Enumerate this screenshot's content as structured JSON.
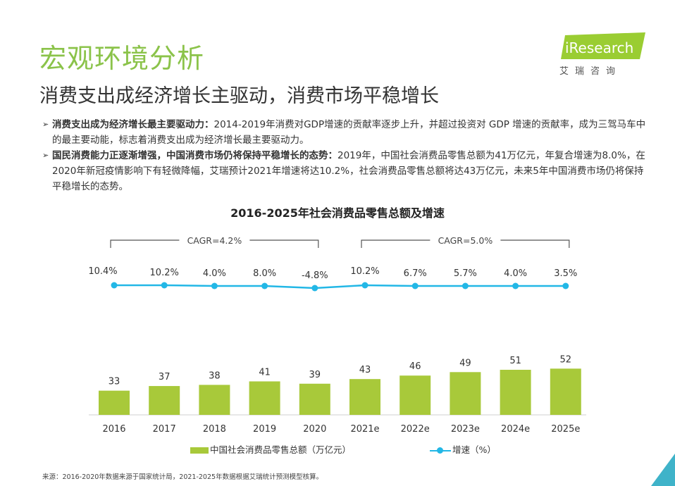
{
  "header": {
    "title": "宏观环境分析",
    "subtitle": "消费支出成经济增长主驱动，消费市场平稳增长"
  },
  "logo": {
    "text": "iResearch",
    "sub": "艾瑞咨询"
  },
  "bullets": [
    {
      "bold": "消费支出成为经济增长最主要驱动力：",
      "text": "2014-2019年消费对GDP增速的贡献率逐步上升，并超过投资对 GDP 增速的贡献率，成为三驾马车中的最主要动能，标志着消费支出成为经济增长最主要驱动力。"
    },
    {
      "bold": "国民消费能力正逐渐增强，中国消费市场仍将保持平稳增长的态势：",
      "text": "2019年，中国社会消费品零售总额为41万亿元，年复合增速为8.0%，在2020年新冠疫情影响下有轻微降幅，艾瑞预计2021年增速将达10.2%，社会消费品零售总额将达43万亿元，未来5年中国消费市场仍将保持平稳增长的态势。"
    }
  ],
  "chart_data": {
    "type": "bar",
    "title": "2016-2025年社会消费品零售总额及增速",
    "categories": [
      "2016",
      "2017",
      "2018",
      "2019",
      "2020",
      "2021e",
      "2022e",
      "2023e",
      "2024e",
      "2025e"
    ],
    "series": [
      {
        "name": "中国社会消费品零售总额（万亿元）",
        "type": "bar",
        "values": [
          33,
          37,
          38,
          41,
          39,
          43,
          46,
          49,
          51,
          52
        ],
        "labels": [
          "33",
          "37",
          "38",
          "41",
          "39",
          "43",
          "46",
          "49",
          "51",
          "52"
        ],
        "color": "#a8c93a"
      },
      {
        "name": "增速（%）",
        "type": "line",
        "values": [
          10.4,
          10.2,
          4.0,
          8.0,
          -4.8,
          10.2,
          6.7,
          5.7,
          4.0,
          3.5
        ],
        "labels": [
          "10.4%",
          "10.2%",
          "4.0%",
          "8.0%",
          "-4.8%",
          "10.2%",
          "6.7%",
          "5.7%",
          "4.0%",
          "3.5%"
        ],
        "color": "#22b7e6"
      }
    ],
    "annotations": [
      {
        "text": "CAGR=4.2%",
        "from": "2016",
        "to": "2020"
      },
      {
        "text": "CAGR=5.0%",
        "from": "2021e",
        "to": "2025e"
      }
    ],
    "legend_position": "bottom",
    "grid": false
  },
  "footer": {
    "source": "来源：2016-2020年数据来源于国家统计局，2021-2025年数据根据艾瑞统计预测模型核算。"
  },
  "colors": {
    "accent": "#8bc34a",
    "bar": "#a8c93a",
    "line": "#22b7e6",
    "corner": "#3fb3c9"
  }
}
